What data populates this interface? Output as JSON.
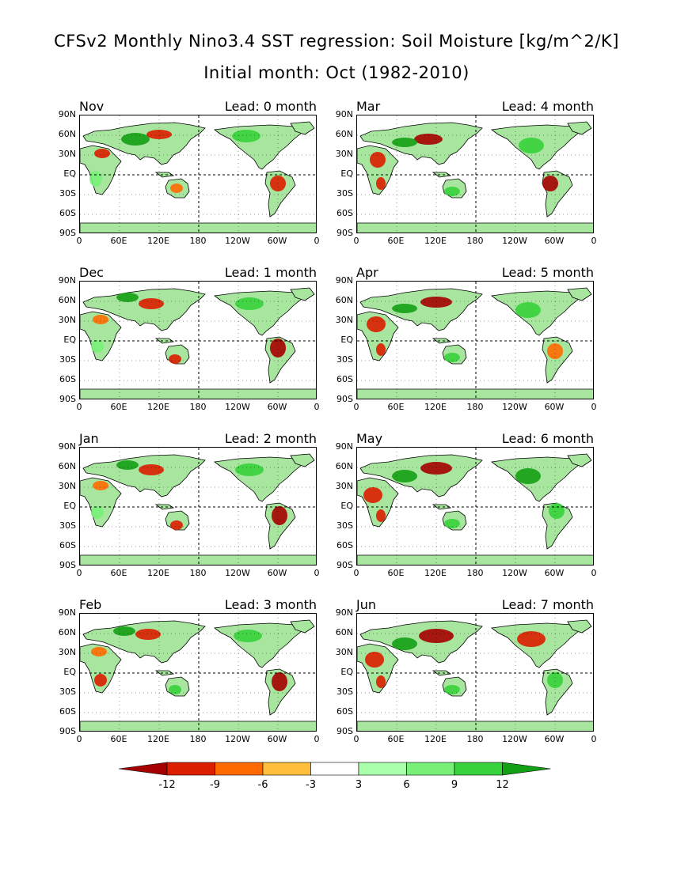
{
  "title_line1": "CFSv2 Monthly Nino3.4 SST regression: Soil Moisture [kg/m^2/K]",
  "title_line2": "Initial month: Oct (1982-2010)",
  "lat_labels": [
    "90N",
    "60N",
    "30N",
    "EQ",
    "30S",
    "60S",
    "90S"
  ],
  "lon_labels": [
    "0",
    "60E",
    "120E",
    "180",
    "120W",
    "60W",
    "0"
  ],
  "panels": [
    {
      "month": "Nov",
      "lead": "Lead: 0 month"
    },
    {
      "month": "Mar",
      "lead": "Lead: 4 month"
    },
    {
      "month": "Dec",
      "lead": "Lead: 1 month"
    },
    {
      "month": "Apr",
      "lead": "Lead: 5 month"
    },
    {
      "month": "Jan",
      "lead": "Lead: 2 month"
    },
    {
      "month": "May",
      "lead": "Lead: 6 month"
    },
    {
      "month": "Feb",
      "lead": "Lead: 3 month"
    },
    {
      "month": "Jun",
      "lead": "Lead: 7 month"
    }
  ],
  "colorbar": {
    "labels": [
      "-12",
      "-9",
      "-6",
      "-3",
      "3",
      "6",
      "9",
      "12"
    ],
    "colors": [
      "#a50000",
      "#dc1e00",
      "#ff6a00",
      "#ffbe3c",
      "#ffffff",
      "#aaffaa",
      "#78f078",
      "#37d23c",
      "#14a014"
    ]
  }
}
